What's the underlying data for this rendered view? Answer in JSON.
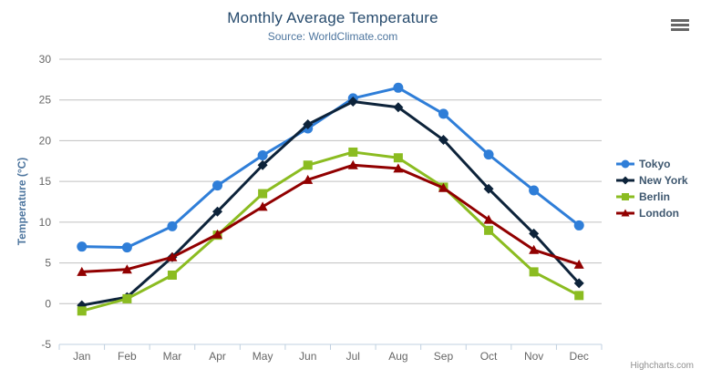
{
  "header": {
    "title": "Monthly Average Temperature",
    "subtitle": "Source: WorldClimate.com"
  },
  "export_menu": {
    "icon": "hamburger-icon"
  },
  "credits": {
    "text": "Highcharts.com"
  },
  "chart_data": {
    "type": "line",
    "title": "Monthly Average Temperature",
    "subtitle": "Source: WorldClimate.com",
    "categories": [
      "Jan",
      "Feb",
      "Mar",
      "Apr",
      "May",
      "Jun",
      "Jul",
      "Aug",
      "Sep",
      "Oct",
      "Nov",
      "Dec"
    ],
    "series": [
      {
        "name": "Tokyo",
        "color": "#2f7ed8",
        "marker": "circle",
        "values": [
          7.0,
          6.9,
          9.5,
          14.5,
          18.2,
          21.5,
          25.2,
          26.5,
          23.3,
          18.3,
          13.9,
          9.6
        ]
      },
      {
        "name": "New York",
        "color": "#0d233a",
        "marker": "diamond",
        "values": [
          -0.2,
          0.8,
          5.7,
          11.3,
          17.0,
          22.0,
          24.8,
          24.1,
          20.1,
          14.1,
          8.6,
          2.5
        ]
      },
      {
        "name": "Berlin",
        "color": "#8bbc21",
        "marker": "square",
        "values": [
          -0.9,
          0.6,
          3.5,
          8.4,
          13.5,
          17.0,
          18.6,
          17.9,
          14.3,
          9.0,
          3.9,
          1.0
        ]
      },
      {
        "name": "London",
        "color": "#910000",
        "marker": "triangle",
        "values": [
          3.9,
          4.2,
          5.7,
          8.5,
          11.9,
          15.2,
          17.0,
          16.6,
          14.2,
          10.3,
          6.6,
          4.8
        ]
      }
    ],
    "xlabel": "",
    "ylabel": "Temperature (°C)",
    "ylim": [
      -5,
      30
    ],
    "ytick_interval": 5,
    "grid": true,
    "legend_position": "right",
    "colors": {
      "gridline": "#C0C0C0",
      "axis_line": "#C0D0E0",
      "tick_label": "#666666",
      "title_text": "#274b6d",
      "subtitle_text": "#4d759e",
      "legend_text": "#3E576F",
      "credit_text": "#909090"
    }
  }
}
